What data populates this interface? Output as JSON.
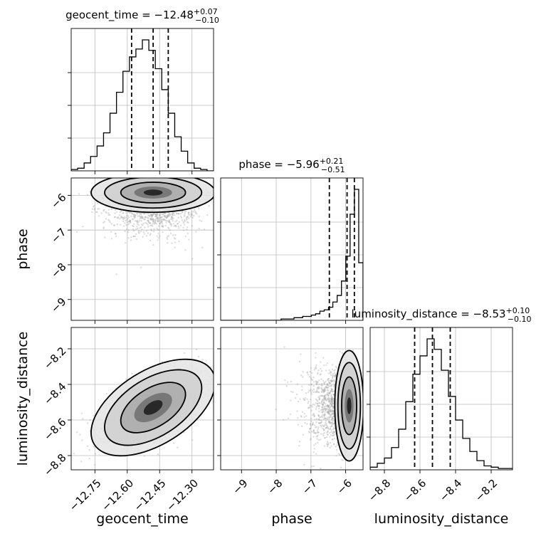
{
  "chart_data": {
    "type": "corner",
    "parameters": [
      {
        "name": "geocent_time",
        "range": [
          -12.86,
          -12.2
        ],
        "ticks": [
          -12.75,
          -12.6,
          -12.45,
          -12.3
        ],
        "tick_labels": [
          "−12.75",
          "−12.60",
          "−12.45",
          "−12.30"
        ],
        "median": -12.48,
        "plus": "+0.07",
        "minus": "−0.10",
        "q16": -12.58,
        "q84": -12.41,
        "title": "geocent_time = −12.48",
        "hist": [
          0.01,
          0.02,
          0.06,
          0.11,
          0.19,
          0.29,
          0.44,
          0.6,
          0.76,
          0.87,
          0.93,
          1.0,
          0.92,
          0.78,
          0.62,
          0.44,
          0.26,
          0.15,
          0.06,
          0.02,
          0.01,
          0.0
        ]
      },
      {
        "name": "phase",
        "range": [
          -9.6,
          -5.5
        ],
        "ticks": [
          -9,
          -8,
          -7,
          -6
        ],
        "tick_labels": [
          "−9",
          "−8",
          "−7",
          "−6"
        ],
        "median": -5.96,
        "plus": "+0.21",
        "minus": "−0.51",
        "q16": -6.47,
        "q84": -5.75,
        "title": "phase = −5.96",
        "hist": [
          0.0,
          0.0,
          0.0,
          0.0,
          0.0,
          0.0,
          0.0,
          0.0,
          0.0,
          0.0,
          0.0,
          0.0,
          0.0,
          0.0,
          0.01,
          0.01,
          0.01,
          0.02,
          0.02,
          0.03,
          0.03,
          0.04,
          0.05,
          0.07,
          0.08,
          0.1,
          0.14,
          0.19,
          0.3,
          0.49,
          0.81,
          1.0,
          0.44
        ]
      },
      {
        "name": "luminosity_distance",
        "range": [
          -8.88,
          -8.08
        ],
        "ticks": [
          -8.8,
          -8.6,
          -8.4,
          -8.2
        ],
        "tick_labels": [
          "−8.8",
          "−8.6",
          "−8.4",
          "−8.2"
        ],
        "median": -8.53,
        "plus": "+0.10",
        "minus": "−0.10",
        "q16": -8.63,
        "q84": -8.43,
        "title": "luminosity_distance = −8.53",
        "hist": [
          0.02,
          0.05,
          0.09,
          0.17,
          0.31,
          0.52,
          0.73,
          0.87,
          1.0,
          0.92,
          0.76,
          0.56,
          0.38,
          0.24,
          0.14,
          0.07,
          0.03,
          0.02,
          0.01,
          0.01
        ]
      }
    ],
    "pairs": [
      {
        "x": 0,
        "y": 1,
        "center": [
          -12.48,
          -5.92
        ],
        "spread": [
          0.1,
          0.45
        ]
      },
      {
        "x": 0,
        "y": 2,
        "center": [
          -12.48,
          -8.53
        ],
        "spread": [
          0.1,
          0.1
        ]
      },
      {
        "x": 1,
        "y": 2,
        "center": [
          -5.9,
          -8.52
        ],
        "spread": [
          0.4,
          0.1
        ]
      }
    ],
    "grid": true,
    "quantile_lines": "dashed"
  }
}
